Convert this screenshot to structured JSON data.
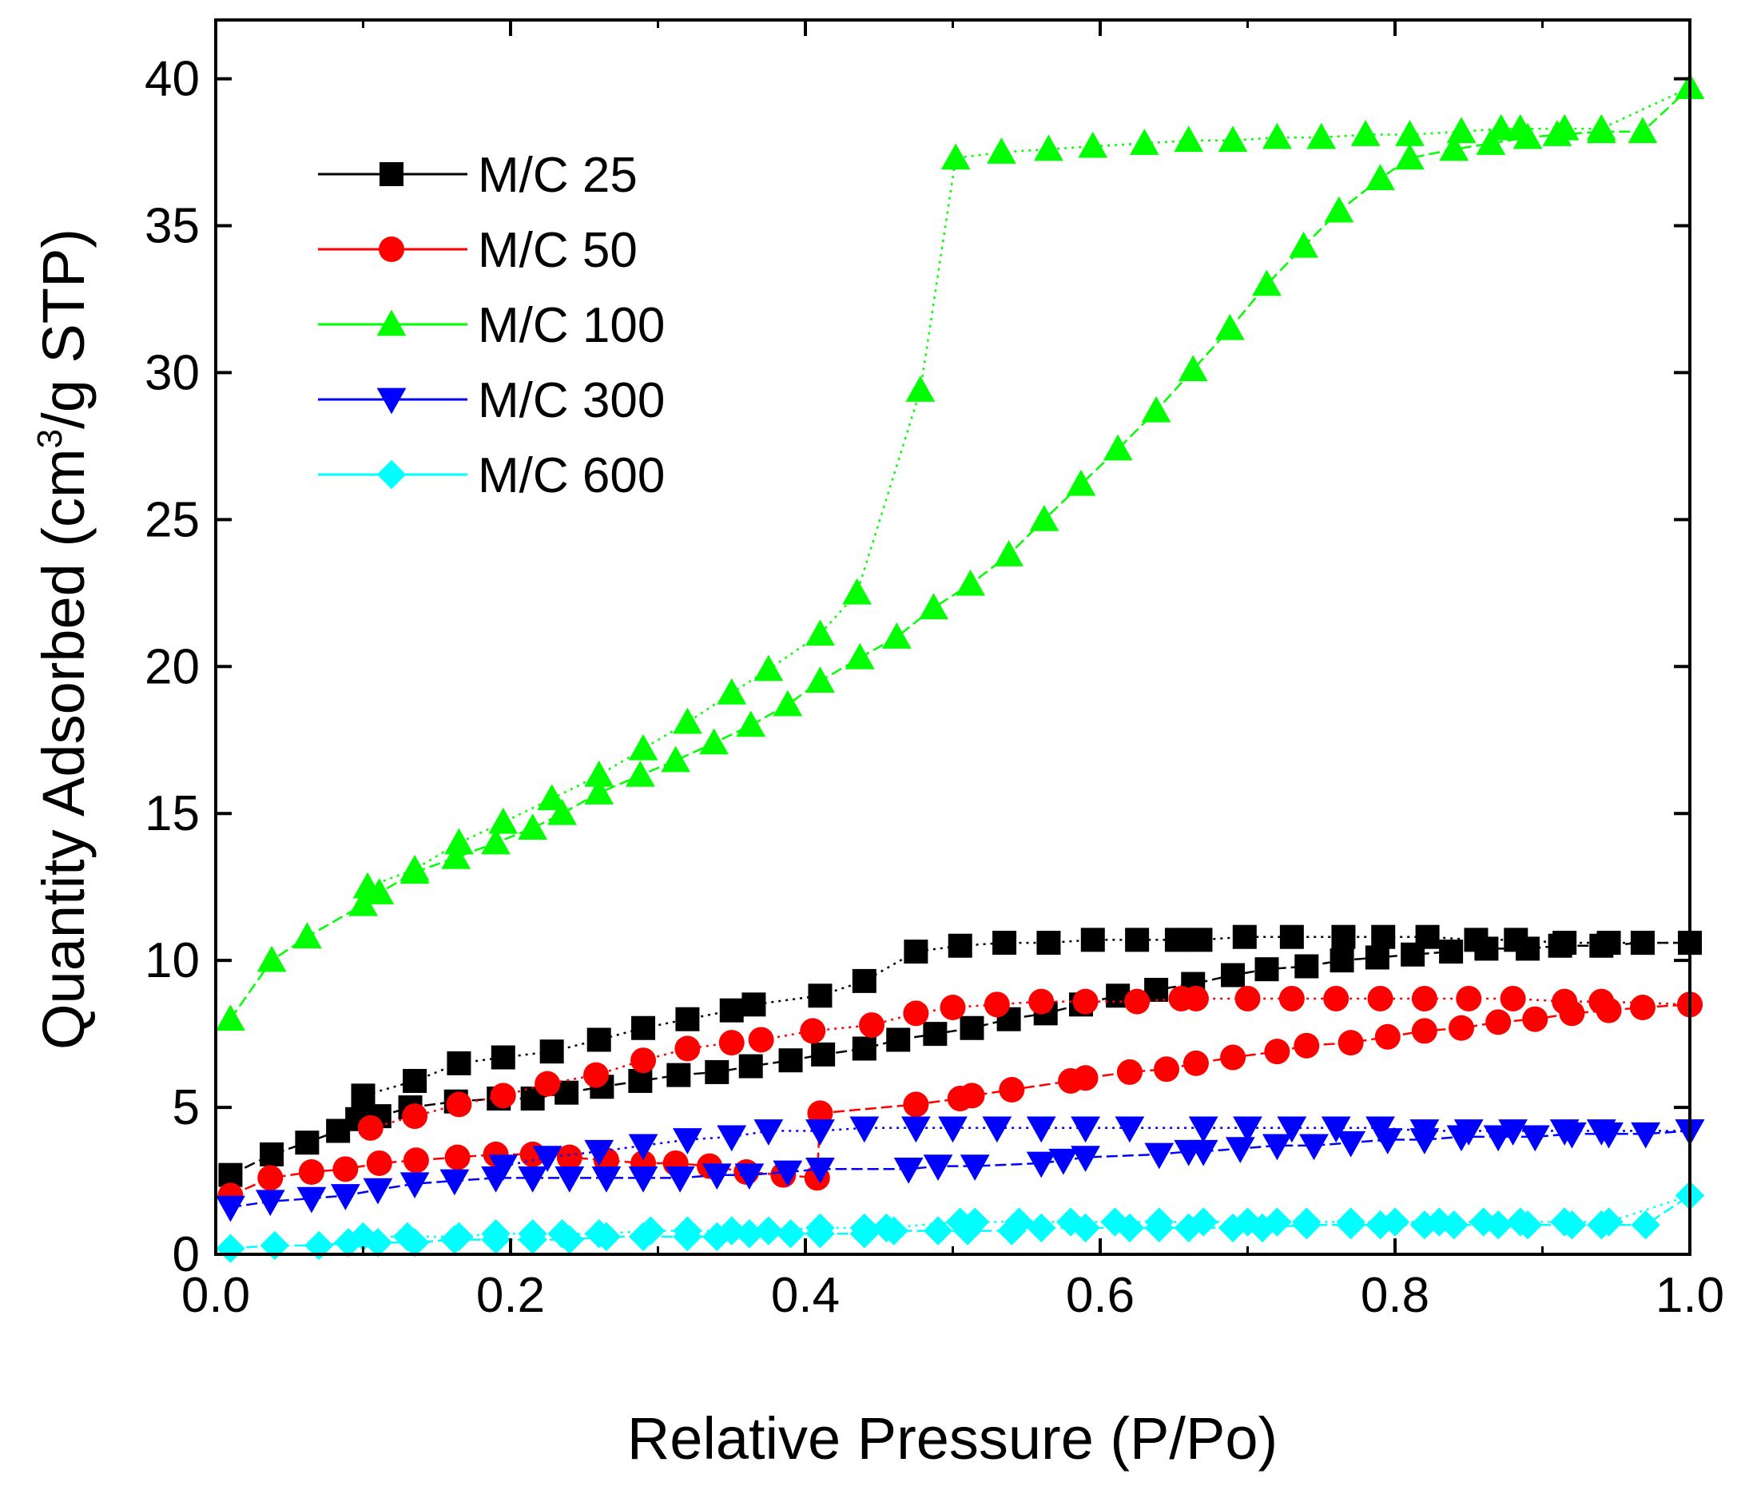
{
  "chart_data": {
    "type": "scatter",
    "title": "",
    "xlabel": "Relative Pressure (P/Po)",
    "ylabel_prefix": "Quantity Adsorbed (cm",
    "ylabel_sup": "3",
    "ylabel_suffix": "/g STP)",
    "xlim": [
      0.0,
      1.0
    ],
    "ylim": [
      0,
      42
    ],
    "xticks": [
      0.0,
      0.2,
      0.4,
      0.6,
      0.8,
      1.0
    ],
    "xtick_labels": [
      "0.0",
      "0.2",
      "0.4",
      "0.6",
      "0.8",
      "1.0"
    ],
    "yticks": [
      0,
      5,
      10,
      15,
      20,
      25,
      30,
      35,
      40
    ],
    "ytick_labels": [
      "0",
      "5",
      "10",
      "15",
      "20",
      "25",
      "30",
      "35",
      "40"
    ],
    "grid": false,
    "legend_position": "top-left",
    "series": [
      {
        "name": "M/C 25",
        "color": "#000000",
        "marker": "square",
        "adsorption": {
          "x": [
            0.01,
            0.038,
            0.062,
            0.083,
            0.096,
            0.111,
            0.132,
            0.163,
            0.192,
            0.215,
            0.238,
            0.262,
            0.288,
            0.314,
            0.34,
            0.363,
            0.39,
            0.412,
            0.44,
            0.463,
            0.488,
            0.513,
            0.538,
            0.563,
            0.587,
            0.612,
            0.638,
            0.663,
            0.69,
            0.713,
            0.74,
            0.764,
            0.788,
            0.812,
            0.838,
            0.862,
            0.89,
            0.912,
            0.94,
            0.968,
            1.0
          ],
          "y": [
            2.7,
            3.4,
            3.8,
            4.2,
            4.6,
            4.7,
            5.0,
            5.2,
            5.3,
            5.3,
            5.5,
            5.7,
            5.9,
            6.1,
            6.2,
            6.4,
            6.6,
            6.8,
            7.0,
            7.3,
            7.5,
            7.7,
            8.0,
            8.2,
            8.5,
            8.8,
            9.0,
            9.2,
            9.5,
            9.7,
            9.8,
            10.0,
            10.1,
            10.2,
            10.3,
            10.4,
            10.4,
            10.5,
            10.5,
            10.6,
            10.6
          ]
        },
        "desorption": {
          "x": [
            1.0,
            0.968,
            0.945,
            0.915,
            0.882,
            0.855,
            0.822,
            0.792,
            0.765,
            0.73,
            0.698,
            0.668,
            0.652,
            0.625,
            0.595,
            0.565,
            0.535,
            0.505,
            0.475,
            0.44,
            0.41,
            0.365,
            0.35,
            0.32,
            0.29,
            0.26,
            0.228,
            0.195,
            0.165,
            0.135,
            0.1
          ],
          "y": [
            10.6,
            10.6,
            10.6,
            10.6,
            10.7,
            10.7,
            10.8,
            10.8,
            10.8,
            10.8,
            10.8,
            10.7,
            10.7,
            10.7,
            10.7,
            10.6,
            10.6,
            10.5,
            10.3,
            9.3,
            8.8,
            8.5,
            8.3,
            8.0,
            7.7,
            7.3,
            6.9,
            6.7,
            6.5,
            5.9,
            5.4
          ]
        }
      },
      {
        "name": "M/C 50",
        "color": "#ff0000",
        "marker": "circle",
        "adsorption": {
          "x": [
            0.01,
            0.037,
            0.065,
            0.088,
            0.111,
            0.136,
            0.164,
            0.19,
            0.215,
            0.24,
            0.265,
            0.29,
            0.312,
            0.335,
            0.36,
            0.385,
            0.408,
            0.41,
            0.475,
            0.505,
            0.513,
            0.54,
            0.58,
            0.59,
            0.62,
            0.645,
            0.665,
            0.69,
            0.72,
            0.74,
            0.77,
            0.795,
            0.82,
            0.845,
            0.87,
            0.895,
            0.92,
            0.945,
            0.968,
            1.0
          ],
          "y": [
            2.0,
            2.6,
            2.8,
            2.9,
            3.1,
            3.2,
            3.3,
            3.4,
            3.4,
            3.3,
            3.2,
            3.1,
            3.1,
            3.0,
            2.8,
            2.7,
            2.6,
            4.8,
            5.1,
            5.3,
            5.4,
            5.6,
            5.9,
            6.0,
            6.2,
            6.3,
            6.5,
            6.7,
            6.9,
            7.1,
            7.2,
            7.4,
            7.6,
            7.7,
            7.9,
            8.0,
            8.2,
            8.3,
            8.4,
            8.5
          ]
        },
        "desorption": {
          "x": [
            1.0,
            0.94,
            0.915,
            0.88,
            0.85,
            0.82,
            0.79,
            0.76,
            0.73,
            0.7,
            0.665,
            0.655,
            0.625,
            0.59,
            0.56,
            0.53,
            0.5,
            0.475,
            0.445,
            0.405,
            0.37,
            0.35,
            0.32,
            0.29,
            0.258,
            0.225,
            0.195,
            0.165,
            0.135,
            0.105
          ],
          "y": [
            8.5,
            8.6,
            8.6,
            8.7,
            8.7,
            8.7,
            8.7,
            8.7,
            8.7,
            8.7,
            8.7,
            8.7,
            8.6,
            8.6,
            8.6,
            8.5,
            8.4,
            8.2,
            7.8,
            7.6,
            7.3,
            7.2,
            7.0,
            6.6,
            6.1,
            5.8,
            5.4,
            5.1,
            4.7,
            4.3
          ]
        }
      },
      {
        "name": "M/C 100",
        "color": "#00ff00",
        "marker": "triangle-up",
        "adsorption": {
          "x": [
            0.01,
            0.038,
            0.062,
            0.1,
            0.111,
            0.135,
            0.163,
            0.19,
            0.215,
            0.235,
            0.26,
            0.288,
            0.312,
            0.338,
            0.363,
            0.388,
            0.41,
            0.437,
            0.462,
            0.487,
            0.512,
            0.538,
            0.562,
            0.587,
            0.612,
            0.638,
            0.663,
            0.688,
            0.713,
            0.738,
            0.762,
            0.79,
            0.81,
            0.84,
            0.865,
            0.89,
            0.91,
            0.94,
            0.968,
            1.0
          ],
          "y": [
            8.0,
            10.0,
            10.8,
            11.9,
            12.3,
            13.0,
            13.5,
            14.0,
            14.5,
            15.0,
            15.7,
            16.3,
            16.8,
            17.4,
            18.0,
            18.7,
            19.5,
            20.3,
            21.0,
            22.0,
            22.8,
            23.8,
            25.0,
            26.2,
            27.4,
            28.7,
            30.1,
            31.5,
            33.0,
            34.3,
            35.5,
            36.6,
            37.3,
            37.6,
            37.8,
            38.0,
            38.1,
            38.2,
            38.2,
            39.7
          ]
        },
        "desorption": {
          "x": [
            1.0,
            0.94,
            0.915,
            0.885,
            0.872,
            0.845,
            0.81,
            0.78,
            0.75,
            0.72,
            0.69,
            0.66,
            0.63,
            0.595,
            0.565,
            0.533,
            0.502,
            0.478,
            0.435,
            0.41,
            0.375,
            0.35,
            0.32,
            0.29,
            0.26,
            0.228,
            0.195,
            0.165,
            0.135,
            0.103
          ],
          "y": [
            39.7,
            38.3,
            38.3,
            38.3,
            38.3,
            38.2,
            38.1,
            38.1,
            38.0,
            38.0,
            37.9,
            37.9,
            37.8,
            37.7,
            37.6,
            37.5,
            37.3,
            29.4,
            22.5,
            21.1,
            19.9,
            19.1,
            18.1,
            17.2,
            16.3,
            15.5,
            14.7,
            14.0,
            13.1,
            12.5
          ]
        }
      },
      {
        "name": "M/C 300",
        "color": "#0000ff",
        "marker": "triangle-down",
        "adsorption": {
          "x": [
            0.01,
            0.037,
            0.065,
            0.088,
            0.11,
            0.135,
            0.162,
            0.19,
            0.215,
            0.24,
            0.265,
            0.29,
            0.315,
            0.34,
            0.362,
            0.388,
            0.41,
            0.47,
            0.49,
            0.515,
            0.56,
            0.575,
            0.59,
            0.64,
            0.66,
            0.67,
            0.695,
            0.72,
            0.745,
            0.77,
            0.795,
            0.82,
            0.845,
            0.87,
            0.895,
            0.92,
            0.945,
            0.97,
            1.0
          ],
          "y": [
            1.6,
            1.8,
            1.9,
            2.0,
            2.2,
            2.4,
            2.5,
            2.6,
            2.6,
            2.6,
            2.6,
            2.6,
            2.6,
            2.7,
            2.7,
            2.8,
            2.9,
            2.9,
            3.0,
            3.0,
            3.1,
            3.2,
            3.3,
            3.4,
            3.5,
            3.5,
            3.6,
            3.7,
            3.7,
            3.8,
            3.9,
            3.9,
            4.0,
            4.0,
            4.0,
            4.1,
            4.1,
            4.1,
            4.2
          ]
        },
        "desorption": {
          "x": [
            1.0,
            0.94,
            0.915,
            0.88,
            0.85,
            0.82,
            0.79,
            0.76,
            0.73,
            0.7,
            0.67,
            0.62,
            0.59,
            0.56,
            0.53,
            0.5,
            0.475,
            0.44,
            0.41,
            0.375,
            0.35,
            0.32,
            0.29,
            0.26,
            0.225,
            0.195
          ],
          "y": [
            4.2,
            4.2,
            4.2,
            4.2,
            4.2,
            4.2,
            4.3,
            4.3,
            4.3,
            4.3,
            4.3,
            4.3,
            4.3,
            4.3,
            4.3,
            4.3,
            4.3,
            4.3,
            4.2,
            4.2,
            4.0,
            3.9,
            3.7,
            3.5,
            3.3,
            3.0
          ]
        }
      },
      {
        "name": "M/C 600",
        "color": "#00ffff",
        "marker": "diamond",
        "adsorption": {
          "x": [
            0.01,
            0.04,
            0.07,
            0.09,
            0.11,
            0.135,
            0.162,
            0.19,
            0.215,
            0.24,
            0.265,
            0.29,
            0.32,
            0.34,
            0.362,
            0.39,
            0.41,
            0.44,
            0.46,
            0.49,
            0.51,
            0.54,
            0.56,
            0.59,
            0.62,
            0.64,
            0.66,
            0.69,
            0.71,
            0.74,
            0.77,
            0.79,
            0.82,
            0.84,
            0.87,
            0.89,
            0.92,
            0.94,
            0.97,
            1.0
          ],
          "y": [
            0.2,
            0.3,
            0.3,
            0.4,
            0.4,
            0.4,
            0.5,
            0.5,
            0.5,
            0.5,
            0.6,
            0.6,
            0.6,
            0.6,
            0.7,
            0.7,
            0.7,
            0.7,
            0.8,
            0.8,
            0.8,
            0.8,
            0.9,
            0.9,
            0.9,
            0.9,
            0.9,
            0.9,
            0.9,
            1.0,
            1.0,
            1.0,
            1.0,
            1.0,
            1.0,
            1.0,
            1.0,
            1.0,
            1.0,
            2.0
          ]
        },
        "desorption": {
          "x": [
            1.0,
            0.945,
            0.915,
            0.885,
            0.86,
            0.83,
            0.8,
            0.77,
            0.74,
            0.72,
            0.7,
            0.67,
            0.64,
            0.61,
            0.58,
            0.545,
            0.515,
            0.505,
            0.455,
            0.44,
            0.41,
            0.375,
            0.35,
            0.32,
            0.295,
            0.26,
            0.235,
            0.215,
            0.19,
            0.165,
            0.13,
            0.1
          ],
          "y": [
            2.0,
            1.1,
            1.1,
            1.1,
            1.1,
            1.1,
            1.1,
            1.1,
            1.1,
            1.1,
            1.1,
            1.1,
            1.1,
            1.1,
            1.1,
            1.1,
            1.1,
            1.1,
            0.9,
            0.9,
            0.9,
            0.8,
            0.8,
            0.8,
            0.8,
            0.7,
            0.7,
            0.7,
            0.7,
            0.6,
            0.6,
            0.6
          ]
        }
      }
    ]
  }
}
